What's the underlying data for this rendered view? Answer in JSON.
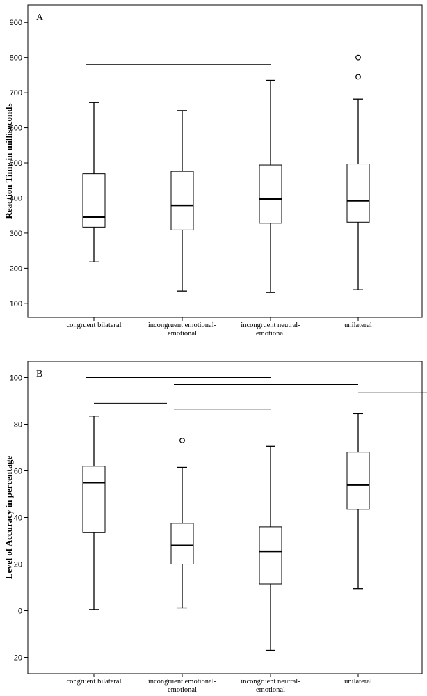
{
  "chart_data": [
    {
      "type": "box",
      "panel_label": "A",
      "ylabel": "Reaction Time in milliseconds",
      "ylim": [
        60,
        950
      ],
      "yticks": [
        100,
        200,
        300,
        400,
        500,
        600,
        700,
        800,
        900
      ],
      "categories": [
        [
          "congruent bilateral"
        ],
        [
          "incongruent emotional-",
          "emotional"
        ],
        [
          "incongruent neutral-",
          "emotional"
        ],
        [
          "unilateral"
        ]
      ],
      "boxes": [
        {
          "min": 218,
          "q1": 317,
          "median": 346,
          "q3": 469,
          "max": 672,
          "outliers": []
        },
        {
          "min": 135,
          "q1": 309,
          "median": 379,
          "q3": 476,
          "max": 649,
          "outliers": []
        },
        {
          "min": 131,
          "q1": 328,
          "median": 397,
          "q3": 494,
          "max": 735,
          "outliers": []
        },
        {
          "min": 139,
          "q1": 331,
          "median": 392,
          "q3": 497,
          "max": 682,
          "outliers": [
            745,
            800
          ]
        }
      ],
      "significance_lines": [
        {
          "from_cat": 0,
          "to_cat": 2,
          "y": 780
        }
      ]
    },
    {
      "type": "box",
      "panel_label": "B",
      "ylabel": "Level of Accuracy in percentage",
      "ylim": [
        -27,
        107
      ],
      "yticks": [
        -20,
        0,
        20,
        40,
        60,
        80,
        100
      ],
      "categories": [
        [
          "congruent bilateral"
        ],
        [
          "incongruent emotional-",
          "emotional"
        ],
        [
          "incongruent neutral-",
          "emotional"
        ],
        [
          "unilateral"
        ]
      ],
      "boxes": [
        {
          "min": 0.5,
          "q1": 33.5,
          "median": 55,
          "q3": 62,
          "max": 83.5,
          "outliers": []
        },
        {
          "min": 1.2,
          "q1": 20,
          "median": 28,
          "q3": 37.5,
          "max": 61.5,
          "outliers": [
            73
          ]
        },
        {
          "min": -17,
          "q1": 11.5,
          "median": 25.5,
          "q3": 36,
          "max": 70.5,
          "outliers": []
        },
        {
          "min": 9.5,
          "q1": 43.5,
          "median": 54,
          "q3": 68,
          "max": 84.5,
          "outliers": []
        }
      ],
      "significance_lines": [
        {
          "from_cat": 0,
          "to_cat": 2,
          "y": 100
        },
        {
          "from_cat": 1,
          "to_cat": 3,
          "y": 97
        },
        {
          "from_cat": 3,
          "to_cat": 3,
          "y": 93.5
        },
        {
          "from_cat": 0,
          "to_cat": 0,
          "y": 89
        },
        {
          "from_cat": 1,
          "to_cat": 2,
          "y": 86.5
        }
      ]
    }
  ]
}
